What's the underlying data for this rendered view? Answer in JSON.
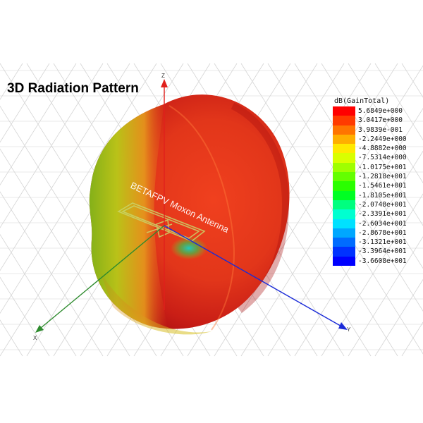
{
  "title": "3D Radiation Pattern",
  "antenna_label": "BETAFPV Moxon Antenna",
  "axes": {
    "x": "X",
    "y": "Y",
    "z": "Z"
  },
  "legend": {
    "header": "dB(GainTotal)",
    "entries": [
      {
        "value": "5.6849e+000",
        "color": "#ff0000"
      },
      {
        "value": "3.0417e+000",
        "color": "#ff3a00"
      },
      {
        "value": "3.9839e-001",
        "color": "#ff7400"
      },
      {
        "value": "-2.2449e+000",
        "color": "#ffaf00"
      },
      {
        "value": "-4.8882e+000",
        "color": "#ffe900"
      },
      {
        "value": "-7.5314e+000",
        "color": "#d9ff00"
      },
      {
        "value": "-1.0175e+001",
        "color": "#9fff00"
      },
      {
        "value": "-1.2818e+001",
        "color": "#64ff00"
      },
      {
        "value": "-1.5461e+001",
        "color": "#2aff00"
      },
      {
        "value": "-1.8105e+001",
        "color": "#00ff23"
      },
      {
        "value": "-2.0748e+001",
        "color": "#00ff7f"
      },
      {
        "value": "-2.3391e+001",
        "color": "#00ffd0"
      },
      {
        "value": "-2.6034e+001",
        "color": "#00e1ff"
      },
      {
        "value": "-2.8678e+001",
        "color": "#00a7ff"
      },
      {
        "value": "-3.1321e+001",
        "color": "#006cff"
      },
      {
        "value": "-3.3964e+001",
        "color": "#0032ff"
      },
      {
        "value": "-3.6608e+001",
        "color": "#0000ff"
      }
    ]
  },
  "colors": {
    "axis_x": "#2e8b2e",
    "axis_y": "#1a2bd8",
    "axis_z": "#e0201c",
    "grid": "#d4d4d4",
    "lobe_main": "#e03a1c",
    "lobe_dark": "#b31414",
    "lobe_side": "#8fc21e"
  }
}
